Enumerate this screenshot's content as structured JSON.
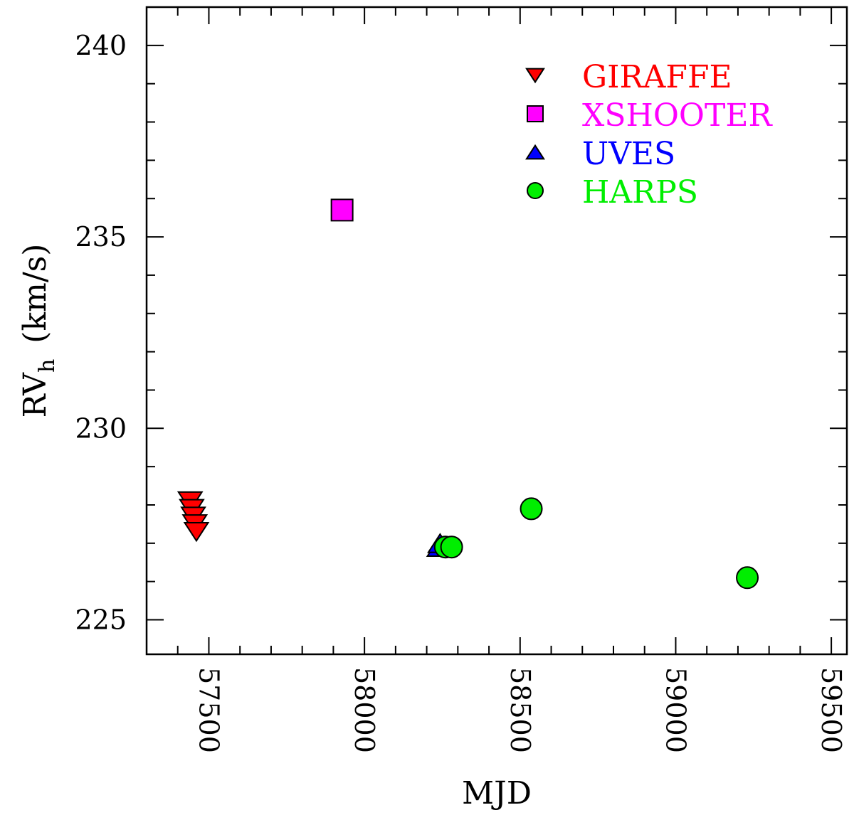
{
  "chart_data": {
    "type": "scatter",
    "xlabel": "MJD",
    "ylabel_main": "RV",
    "ylabel_sub": "h",
    "ylabel_unit": "(km/s)",
    "xlim": [
      57300,
      59550
    ],
    "ylim": [
      224.1,
      241.0
    ],
    "xticks_major": [
      57500,
      58000,
      58500,
      59000,
      59500
    ],
    "xtick_labels": [
      "57500",
      "58000",
      "58500",
      "59000",
      "59500"
    ],
    "xticks_minor_step": 100,
    "yticks_major": [
      225,
      230,
      235,
      240
    ],
    "ytick_labels": [
      "225",
      "230",
      "235",
      "240"
    ],
    "yticks_minor_step": 1,
    "legend_position": "top-right",
    "series": [
      {
        "name": "GIRAFFE",
        "marker": "triangle-down",
        "color": "#ff0000",
        "points": [
          {
            "x": 57440,
            "y": 228.1
          },
          {
            "x": 57445,
            "y": 227.9
          },
          {
            "x": 57450,
            "y": 227.7
          },
          {
            "x": 57455,
            "y": 227.5
          },
          {
            "x": 57460,
            "y": 227.3
          }
        ]
      },
      {
        "name": "XSHOOTER",
        "marker": "square",
        "color": "#ff00ff",
        "points": [
          {
            "x": 57928,
            "y": 235.7
          }
        ]
      },
      {
        "name": "UVES",
        "marker": "triangle-up",
        "color": "#0000ff",
        "points": [
          {
            "x": 58240,
            "y": 226.9
          },
          {
            "x": 58243,
            "y": 227.0
          }
        ]
      },
      {
        "name": "HARPS",
        "marker": "circle",
        "color": "#00ee00",
        "points": [
          {
            "x": 58260,
            "y": 226.9
          },
          {
            "x": 58280,
            "y": 226.9
          },
          {
            "x": 58536,
            "y": 227.9
          },
          {
            "x": 59230,
            "y": 226.1
          }
        ]
      }
    ]
  }
}
